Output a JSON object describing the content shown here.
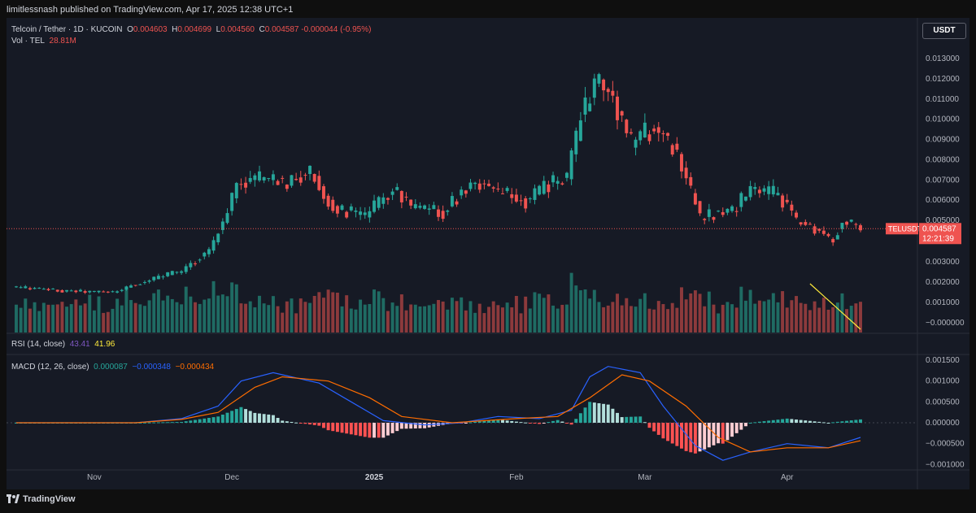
{
  "publisher_line": "limitlessnash published on TradingView.com, Apr 17, 2025 12:38 UTC+1",
  "legend": {
    "symbol": "Telcoin / Tether · 1D · KUCOIN",
    "open_label": "O",
    "open": "0.004603",
    "high_label": "H",
    "high": "0.004699",
    "low_label": "L",
    "low": "0.004560",
    "close_label": "C",
    "close": "0.004587",
    "change": "-0.000044 (-0.95%)",
    "vol_label": "Vol · TEL",
    "vol_value": "28.81M"
  },
  "rsi": {
    "label": "RSI (14, close)",
    "v1": "43.41",
    "v2": "41.96"
  },
  "macd": {
    "label": "MACD (12, 26, close)",
    "v1": "0.000087",
    "v2": "−0.000348",
    "v3": "−0.000434"
  },
  "currency": "USDT",
  "price_tag": {
    "symbol": "TELUSDT",
    "price": "0.004587",
    "countdown": "12:21:39"
  },
  "logo_text": "TradingView",
  "colors": {
    "up": "#26a69a",
    "down": "#ef5350",
    "vol_up": "#1f6b63",
    "vol_down": "#8c3a3c",
    "macd": "#2962ff",
    "signal": "#ff6d00",
    "trendline": "#ffeb3b"
  },
  "chart_data": [
    {
      "type": "candlestick",
      "x_ticks": [
        "Nov",
        "Dec",
        "2025",
        "Feb",
        "Mar",
        "Apr"
      ],
      "x_tick_dates": [
        "2024-11-01",
        "2024-12-01",
        "2025-01-01",
        "2025-02-01",
        "2025-03-01",
        "2025-04-01"
      ],
      "x_range": [
        "2024-10-15",
        "2025-04-17"
      ],
      "y_ticks": [
        "0.013000",
        "0.012000",
        "0.011000",
        "0.010000",
        "0.009000",
        "0.008000",
        "0.007000",
        "0.006000",
        "0.005000",
        "0.003000",
        "0.002000",
        "0.001000",
        "−0.000000"
      ],
      "y_tick_values": [
        0.013,
        0.012,
        0.011,
        0.01,
        0.009,
        0.008,
        0.007,
        0.006,
        0.005,
        0.003,
        0.002,
        0.001,
        0.0
      ],
      "close_key_points": [
        [
          "2024-10-15",
          0.0017
        ],
        [
          "2024-10-25",
          0.0015
        ],
        [
          "2024-11-05",
          0.00145
        ],
        [
          "2024-11-12",
          0.002
        ],
        [
          "2024-11-20",
          0.0025
        ],
        [
          "2024-11-26",
          0.0035
        ],
        [
          "2024-11-29",
          0.005
        ],
        [
          "2024-12-02",
          0.0068
        ],
        [
          "2024-12-08",
          0.0072
        ],
        [
          "2024-12-13",
          0.0068
        ],
        [
          "2024-12-18",
          0.0074
        ],
        [
          "2024-12-23",
          0.0056
        ],
        [
          "2024-12-30",
          0.0052
        ],
        [
          "2025-01-05",
          0.0066
        ],
        [
          "2025-01-10",
          0.0055
        ],
        [
          "2025-01-16",
          0.0054
        ],
        [
          "2025-01-22",
          0.0069
        ],
        [
          "2025-01-28",
          0.0064
        ],
        [
          "2025-02-03",
          0.0059
        ],
        [
          "2025-02-08",
          0.0068
        ],
        [
          "2025-02-12",
          0.0072
        ],
        [
          "2025-02-15",
          0.01
        ],
        [
          "2025-02-18",
          0.012
        ],
        [
          "2025-02-22",
          0.011
        ],
        [
          "2025-02-26",
          0.0088
        ],
        [
          "2025-03-03",
          0.0096
        ],
        [
          "2025-03-08",
          0.0084
        ],
        [
          "2025-03-13",
          0.0052
        ],
        [
          "2025-03-20",
          0.0055
        ],
        [
          "2025-03-24",
          0.0065
        ],
        [
          "2025-03-30",
          0.0063
        ],
        [
          "2025-04-03",
          0.005
        ],
        [
          "2025-04-08",
          0.0045
        ],
        [
          "2025-04-11",
          0.004
        ],
        [
          "2025-04-13",
          0.005
        ],
        [
          "2025-04-17",
          0.00459
        ]
      ],
      "volume_note": "Volume histogram overlaid at bottom of price pane; falling yellow trendline from early April peak to latest bar",
      "annotations": [
        {
          "type": "trendline",
          "from": [
            "2025-04-05",
            "high volume"
          ],
          "to": [
            "2025-04-17",
            "low volume"
          ]
        }
      ]
    },
    {
      "type": "line",
      "title": "MACD (12, 26, close)",
      "y_ticks": [
        "0.001500",
        "0.001000",
        "0.000500",
        "0.000000",
        "−0.000500",
        "−0.001000"
      ],
      "y_tick_values": [
        0.0015,
        0.001,
        0.0005,
        0.0,
        -0.0005,
        -0.001
      ],
      "series": [
        {
          "name": "MACD",
          "points": [
            [
              "2024-10-15",
              0.0
            ],
            [
              "2024-11-10",
              0.0
            ],
            [
              "2024-11-20",
              0.0001
            ],
            [
              "2024-11-28",
              0.0004
            ],
            [
              "2024-12-03",
              0.001
            ],
            [
              "2024-12-10",
              0.0012
            ],
            [
              "2024-12-20",
              0.00095
            ],
            [
              "2024-12-27",
              0.0005
            ],
            [
              "2025-01-03",
              5e-05
            ],
            [
              "2025-01-12",
              -5e-05
            ],
            [
              "2025-01-20",
              0.0
            ],
            [
              "2025-01-28",
              0.00015
            ],
            [
              "2025-02-06",
              0.0001
            ],
            [
              "2025-02-13",
              0.0003
            ],
            [
              "2025-02-17",
              0.0011
            ],
            [
              "2025-02-21",
              0.00135
            ],
            [
              "2025-02-28",
              0.0012
            ],
            [
              "2025-03-05",
              0.0004
            ],
            [
              "2025-03-12",
              -0.00055
            ],
            [
              "2025-03-18",
              -0.0009
            ],
            [
              "2025-03-24",
              -0.0007
            ],
            [
              "2025-04-01",
              -0.0005
            ],
            [
              "2025-04-10",
              -0.0006
            ],
            [
              "2025-04-17",
              -0.00035
            ]
          ]
        },
        {
          "name": "Signal",
          "points": [
            [
              "2024-10-15",
              0.0
            ],
            [
              "2024-11-10",
              0.0
            ],
            [
              "2024-11-20",
              8e-05
            ],
            [
              "2024-11-28",
              0.00025
            ],
            [
              "2024-12-06",
              0.00085
            ],
            [
              "2024-12-12",
              0.0011
            ],
            [
              "2024-12-22",
              0.001
            ],
            [
              "2024-12-31",
              0.0006
            ],
            [
              "2025-01-07",
              0.00015
            ],
            [
              "2025-01-18",
              0.0
            ],
            [
              "2025-02-01",
              0.0001
            ],
            [
              "2025-02-10",
              0.00015
            ],
            [
              "2025-02-17",
              0.0006
            ],
            [
              "2025-02-24",
              0.00115
            ],
            [
              "2025-03-02",
              0.001
            ],
            [
              "2025-03-10",
              0.0004
            ],
            [
              "2025-03-17",
              -0.00035
            ],
            [
              "2025-03-24",
              -0.0007
            ],
            [
              "2025-04-01",
              -0.0006
            ],
            [
              "2025-04-10",
              -0.0006
            ],
            [
              "2025-04-17",
              -0.00043
            ]
          ]
        }
      ]
    }
  ]
}
